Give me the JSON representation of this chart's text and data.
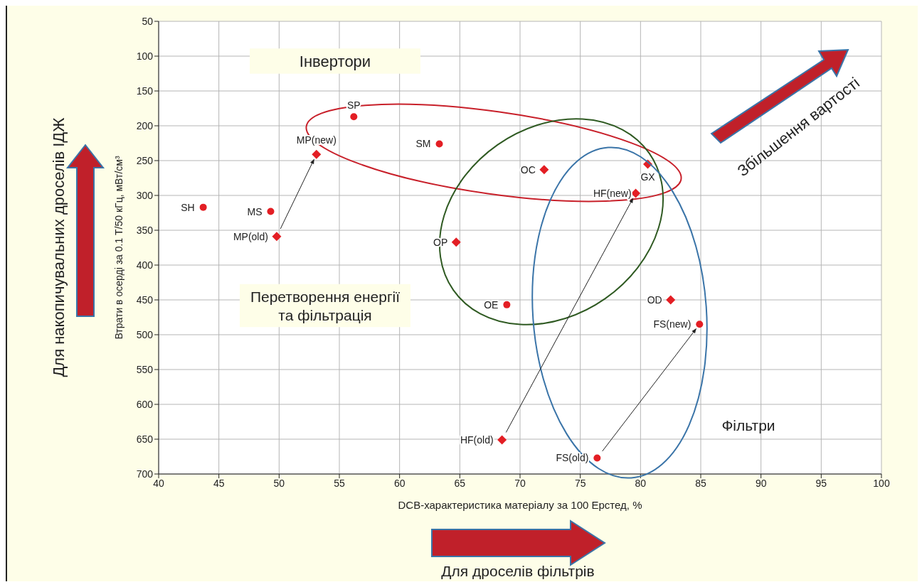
{
  "chart_data": {
    "type": "scatter",
    "xlabel": "DCB-характеристика матеріалу за 100 Ерстед, %",
    "ylabel": "Втрати в осерді за 0.1 Т/50 кГц, мВт/см³",
    "series": [
      {
        "color": "#e31e24",
        "marker": "circle",
        "x": [
          43.7,
          49.3,
          56.2,
          63.3,
          68.9,
          84.9,
          76.4
        ],
        "values": [
          317,
          323,
          187,
          226,
          457,
          485,
          677
        ]
      },
      {
        "color": "#e31e24",
        "marker": "diamond",
        "x": [
          49.8,
          53.1,
          72.0,
          80.6,
          79.6,
          64.7,
          82.5,
          68.5
        ],
        "values": [
          359,
          241,
          263,
          255,
          297,
          367,
          450,
          651
        ]
      }
    ],
    "xlim": [
      40,
      100
    ],
    "xticks": [
      40,
      45,
      50,
      55,
      60,
      65,
      70,
      75,
      80,
      85,
      90,
      95,
      100
    ],
    "ylim": [
      700,
      50
    ],
    "yticks": [
      50,
      100,
      150,
      200,
      250,
      300,
      350,
      400,
      450,
      500,
      550,
      600,
      650,
      700
    ],
    "grid": true,
    "annotations": [
      {
        "text": "SH",
        "x": 43.7,
        "y": 317
      },
      {
        "text": "MS",
        "x": 49.3,
        "y": 323
      },
      {
        "text": "SP",
        "x": 56.2,
        "y": 187
      },
      {
        "text": "SM",
        "x": 63.3,
        "y": 226
      },
      {
        "text": "OE",
        "x": 68.9,
        "y": 457
      },
      {
        "text": "FS(new)",
        "x": 84.9,
        "y": 485
      },
      {
        "text": "FS(old)",
        "x": 76.4,
        "y": 677
      },
      {
        "text": "MP(old)",
        "x": 49.8,
        "y": 359
      },
      {
        "text": "MP(new)",
        "x": 53.1,
        "y": 241
      },
      {
        "text": "OC",
        "x": 72.0,
        "y": 263
      },
      {
        "text": "GX",
        "x": 80.6,
        "y": 255
      },
      {
        "text": "HF(new)",
        "x": 79.6,
        "y": 297
      },
      {
        "text": "OP",
        "x": 64.7,
        "y": 367
      },
      {
        "text": "OD",
        "x": 82.5,
        "y": 450
      },
      {
        "text": "HF(old)",
        "x": 68.5,
        "y": 651
      },
      "Інвертори",
      "Перетворення енергії\nта фільтрація",
      "Фільтри",
      "Збільшення вартості",
      "Для дроселів фільтрів",
      "Для накопичувальних дроселів ІДЖ"
    ]
  }
}
